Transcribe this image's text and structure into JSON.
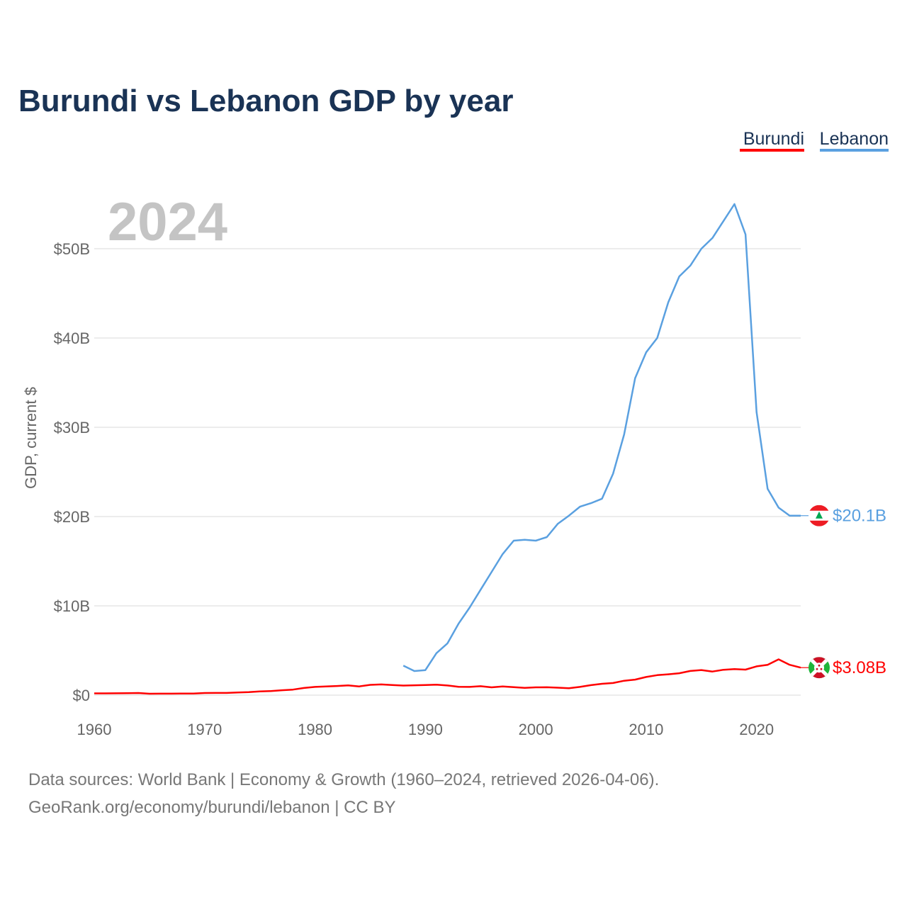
{
  "chart_data": {
    "type": "line",
    "title": "Burundi vs Lebanon GDP by year",
    "ylabel": "GDP, current $",
    "xlabel": "",
    "year_watermark": "2024",
    "xlim": [
      1960,
      2024
    ],
    "ylim": [
      0,
      55
    ],
    "y_unit": "billion USD",
    "x_ticks": [
      {
        "value": 1960,
        "label": "1960"
      },
      {
        "value": 1970,
        "label": "1970"
      },
      {
        "value": 1980,
        "label": "1980"
      },
      {
        "value": 1990,
        "label": "1990"
      },
      {
        "value": 2000,
        "label": "2000"
      },
      {
        "value": 2010,
        "label": "2010"
      },
      {
        "value": 2020,
        "label": "2020"
      }
    ],
    "y_ticks": [
      {
        "value": 0,
        "label": "$0"
      },
      {
        "value": 10,
        "label": "$10B"
      },
      {
        "value": 20,
        "label": "$20B"
      },
      {
        "value": 30,
        "label": "$30B"
      },
      {
        "value": 40,
        "label": "$40B"
      },
      {
        "value": 50,
        "label": "$50B"
      }
    ],
    "grid": true,
    "legend": {
      "placement": "top-right",
      "entries": [
        "Burundi",
        "Lebanon"
      ]
    },
    "series": [
      {
        "name": "Burundi",
        "color": "#ff0000",
        "end_label": "$3.08B",
        "flag_icon": "burundi-flag-icon",
        "x": [
          1960,
          1961,
          1962,
          1963,
          1964,
          1965,
          1966,
          1967,
          1968,
          1969,
          1970,
          1971,
          1972,
          1973,
          1974,
          1975,
          1976,
          1977,
          1978,
          1979,
          1980,
          1981,
          1982,
          1983,
          1984,
          1985,
          1986,
          1987,
          1988,
          1989,
          1990,
          1991,
          1992,
          1993,
          1994,
          1995,
          1996,
          1997,
          1998,
          1999,
          2000,
          2001,
          2002,
          2003,
          2004,
          2005,
          2006,
          2007,
          2008,
          2009,
          2010,
          2011,
          2012,
          2013,
          2014,
          2015,
          2016,
          2017,
          2018,
          2019,
          2020,
          2021,
          2022,
          2023,
          2024
        ],
        "values": [
          0.2,
          0.2,
          0.21,
          0.22,
          0.24,
          0.16,
          0.17,
          0.17,
          0.18,
          0.18,
          0.24,
          0.25,
          0.25,
          0.3,
          0.33,
          0.42,
          0.45,
          0.55,
          0.62,
          0.8,
          0.92,
          0.97,
          1.02,
          1.09,
          0.98,
          1.15,
          1.2,
          1.13,
          1.07,
          1.1,
          1.13,
          1.17,
          1.08,
          0.94,
          0.92,
          1.0,
          0.87,
          0.97,
          0.89,
          0.81,
          0.87,
          0.88,
          0.83,
          0.78,
          0.92,
          1.12,
          1.27,
          1.36,
          1.61,
          1.74,
          2.03,
          2.24,
          2.33,
          2.45,
          2.71,
          2.81,
          2.64,
          2.84,
          2.91,
          2.86,
          3.22,
          3.4,
          4.01,
          3.4,
          3.08
        ]
      },
      {
        "name": "Lebanon",
        "color": "#5aa0e0",
        "end_label": "$20.1B",
        "flag_icon": "lebanon-flag-icon",
        "x": [
          1988,
          1989,
          1990,
          1991,
          1992,
          1993,
          1994,
          1995,
          1996,
          1997,
          1998,
          1999,
          2000,
          2001,
          2002,
          2003,
          2004,
          2005,
          2006,
          2007,
          2008,
          2009,
          2010,
          2011,
          2012,
          2013,
          2014,
          2015,
          2016,
          2017,
          2018,
          2019,
          2020,
          2021,
          2022,
          2023,
          2024
        ],
        "values": [
          3.3,
          2.7,
          2.8,
          4.7,
          5.8,
          8.0,
          9.8,
          11.8,
          13.8,
          15.8,
          17.3,
          17.4,
          17.3,
          17.7,
          19.2,
          20.1,
          21.1,
          21.5,
          22.0,
          24.8,
          29.2,
          35.5,
          38.4,
          40.0,
          44.0,
          46.9,
          48.1,
          50.0,
          51.2,
          53.1,
          55.0,
          51.6,
          31.7,
          23.1,
          21.0,
          20.1,
          20.1
        ]
      }
    ]
  },
  "source": {
    "line1": "Data sources: World Bank | Economy & Growth (1960–2024, retrieved 2026-04-06).",
    "line2": "GeoRank.org/economy/burundi/lebanon | CC BY"
  }
}
